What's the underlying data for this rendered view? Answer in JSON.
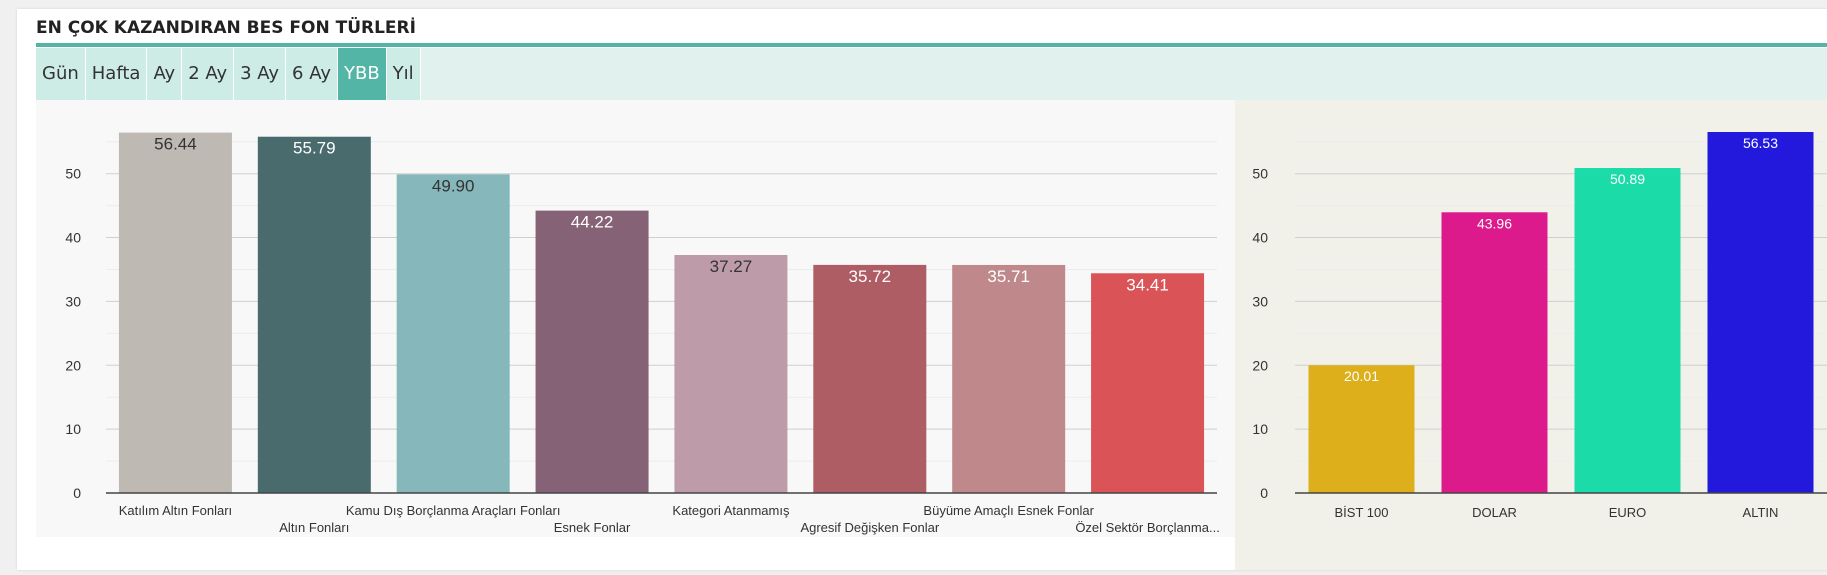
{
  "header": {
    "title": "EN ÇOK KAZANDIRAN BES FON TÜRLERİ",
    "accent_color": "#53b5a5"
  },
  "tabs": [
    {
      "label": "Gün",
      "active": false
    },
    {
      "label": "Hafta",
      "active": false
    },
    {
      "label": "Ay",
      "active": false
    },
    {
      "label": "2 Ay",
      "active": false
    },
    {
      "label": "3 Ay",
      "active": false
    },
    {
      "label": "6 Ay",
      "active": false
    },
    {
      "label": "YBB",
      "active": true
    },
    {
      "label": "Yıl",
      "active": false
    }
  ],
  "chart_data": [
    {
      "type": "bar",
      "categories": [
        "Katılım Altın Fonları",
        "Altın Fonları",
        "Kamu Dış Borçlanma Araçları Fonları",
        "Esnek Fonlar",
        "Kategori Atanmamış",
        "Agresif Değişken Fonlar",
        "Büyüme Amaçlı Esnek Fonlar",
        "Özel Sektör Borçlanma..."
      ],
      "values": [
        56.44,
        55.79,
        49.9,
        44.22,
        37.27,
        35.72,
        35.71,
        34.41
      ],
      "labels": [
        "56.44",
        "55.79",
        "49.90",
        "44.22",
        "37.27",
        "35.72",
        "35.71",
        "34.41"
      ],
      "colors": [
        "#bfb9b3",
        "#4a6b6e",
        "#85b7bb",
        "#856275",
        "#bd9ba9",
        "#ad5d63",
        "#bf898b",
        "#da5457"
      ],
      "label_colors": [
        "#333333",
        "#ffffff",
        "#333333",
        "#ffffff",
        "#333333",
        "#ffffff",
        "#ffffff",
        "#ffffff"
      ],
      "yticks": [
        "0",
        "10",
        "20",
        "30",
        "40",
        "50"
      ],
      "ylim": [
        0,
        57
      ],
      "grid": true
    },
    {
      "type": "bar",
      "categories": [
        "BİST 100",
        "DOLAR",
        "EURO",
        "ALTIN"
      ],
      "values": [
        20.01,
        43.96,
        50.89,
        56.53
      ],
      "labels": [
        "20.01",
        "43.96",
        "50.89",
        "56.53"
      ],
      "colors": [
        "#dcaf1b",
        "#dd1a8c",
        "#1bdca8",
        "#2319dc"
      ],
      "label_colors": [
        "#ffffff",
        "#ffffff",
        "#ffffff",
        "#ffffff"
      ],
      "yticks": [
        "0",
        "10",
        "20",
        "30",
        "40",
        "50"
      ],
      "ylim": [
        0,
        57
      ],
      "grid": true
    }
  ]
}
